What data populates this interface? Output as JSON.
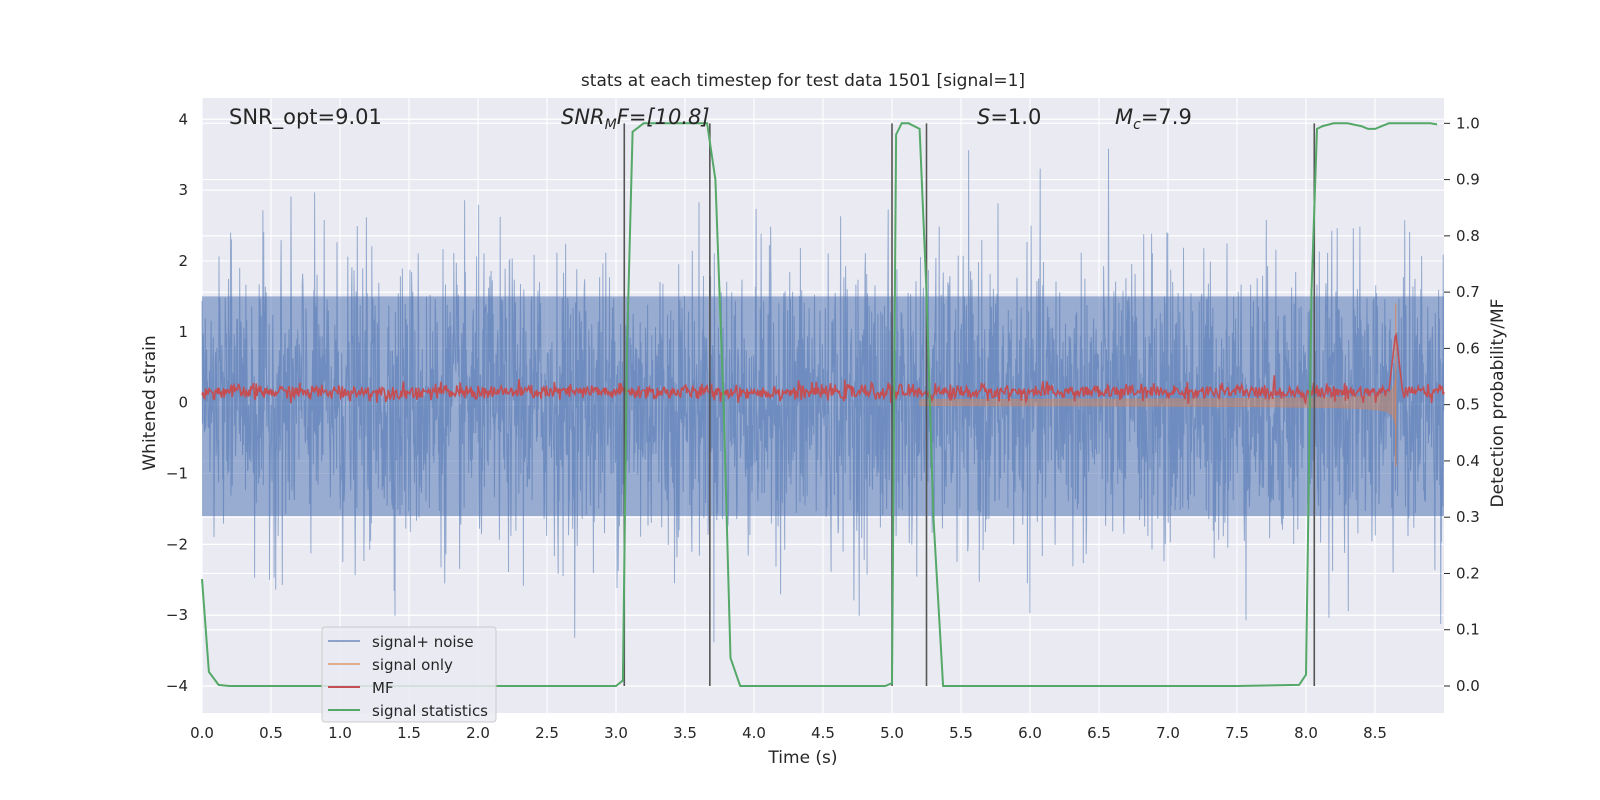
{
  "chart_data": {
    "type": "line",
    "title": "stats at each timestep for test data 1501 [signal=1]",
    "xlabel": "Time (s)",
    "ylabel": "Whitened strain",
    "y2label": "Detection probability/MF",
    "xlim": [
      0.0,
      9.0
    ],
    "ylim": [
      -4.38,
      4.3
    ],
    "y2lim": [
      -0.048,
      1.045
    ],
    "xticks": [
      "0.0",
      "0.5",
      "1.0",
      "1.5",
      "2.0",
      "2.5",
      "3.0",
      "3.5",
      "4.0",
      "4.5",
      "5.0",
      "5.5",
      "6.0",
      "6.5",
      "7.0",
      "7.5",
      "8.0",
      "8.5"
    ],
    "yticks": [
      "4",
      "3",
      "2",
      "1",
      "0",
      "−1",
      "−2",
      "−3",
      "−4"
    ],
    "y2ticks": [
      "1.0",
      "0.9",
      "0.8",
      "0.7",
      "0.6",
      "0.5",
      "0.4",
      "0.3",
      "0.2",
      "0.1",
      "0.0"
    ],
    "grid": true,
    "legend_position": "lower-left",
    "annotations": {
      "snr_opt": "SNR_opt=9.01",
      "snr_mf_base": "SNR",
      "snr_mf_sub": "M",
      "snr_mf_rest": "F=[10.8]",
      "s_base": "S",
      "s_rest": "=1.0",
      "mc_base": "M",
      "mc_sub": "c",
      "mc_rest": "=7.9"
    },
    "vertical_markers_x": [
      3.06,
      3.68,
      5.0,
      5.25,
      8.06
    ],
    "series": [
      {
        "name": "signal+ noise",
        "color": "#4c72b0",
        "axis": "left",
        "description_values": {
          "noise_sigma": 1.0,
          "t_start": 0.0,
          "t_end": 9.0
        }
      },
      {
        "name": "signal only",
        "color": "#dd8452",
        "axis": "left",
        "chirp_peak_time": 8.65,
        "chirp_peak_amplitude": 1.4
      },
      {
        "name": "MF",
        "color": "#c44e52",
        "axis": "left",
        "baseline": 0.15,
        "peak_time": 8.65,
        "peak_value": 1.0
      },
      {
        "name": "signal statistics",
        "color": "#55a868",
        "axis": "right",
        "x": [
          0.0,
          0.05,
          0.12,
          0.2,
          0.5,
          1.0,
          1.5,
          2.0,
          2.5,
          3.0,
          3.05,
          3.08,
          3.12,
          3.2,
          3.5,
          3.66,
          3.72,
          3.78,
          3.83,
          3.9,
          4.0,
          4.5,
          4.95,
          5.0,
          5.03,
          5.07,
          5.12,
          5.2,
          5.25,
          5.3,
          5.37,
          5.5,
          6.0,
          6.5,
          7.0,
          7.5,
          7.95,
          8.0,
          8.04,
          8.08,
          8.12,
          8.2,
          8.3,
          8.4,
          8.45,
          8.5,
          8.55,
          8.6,
          8.7,
          8.8,
          8.9,
          8.95
        ],
        "values": [
          0.19,
          0.025,
          0.002,
          0.0,
          0.0,
          0.0,
          0.0,
          0.0,
          0.0,
          0.0,
          0.01,
          0.6,
          0.985,
          1.0,
          1.0,
          1.0,
          0.9,
          0.5,
          0.05,
          0.0,
          0.0,
          0.0,
          0.0,
          0.005,
          0.98,
          1.0,
          1.0,
          0.99,
          0.7,
          0.3,
          0.0,
          0.0,
          0.0,
          0.0,
          0.0,
          0.0,
          0.002,
          0.02,
          0.7,
          0.99,
          0.995,
          1.0,
          1.0,
          0.995,
          0.99,
          0.99,
          0.995,
          1.0,
          1.0,
          1.0,
          1.0,
          0.998
        ]
      }
    ]
  }
}
